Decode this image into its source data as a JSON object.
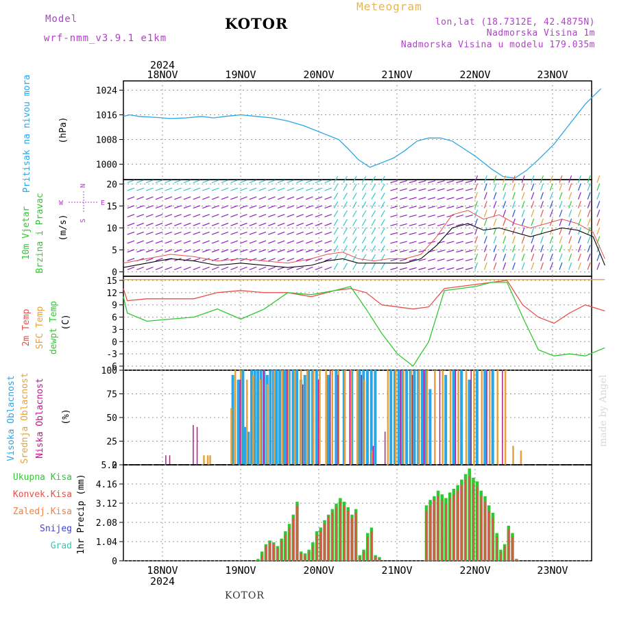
{
  "header": {
    "model_label": "Model",
    "model_name": "wrf-nmm_v3.9.1  e1km",
    "station": "KOTOR",
    "product": "Meteogram",
    "lonlat": "lon,lat (18.7312E, 42.4875N)",
    "elevation": "Nadmorska Visina 1m",
    "model_elevation": "Nadmorska Visina u modelu 179.035m"
  },
  "footer": {
    "station": "KOTOR",
    "credit": "made by Angel"
  },
  "time_axis": {
    "year_top": "2024",
    "year_bottom": "2024",
    "day_labels": [
      "18NOV",
      "19NOV",
      "20NOV",
      "21NOV",
      "22NOV",
      "23NOV"
    ]
  },
  "colors": {
    "pressure": "#2aa6e6",
    "temp": "#e8504a",
    "sfc": "#e6a13a",
    "dew": "#30c830",
    "high_cloud": "#2aa6e6",
    "mid_cloud": "#e6a13a",
    "low_cloud": "#c0148c",
    "precip_total": "#30c830",
    "precip_conv": "#e8504a",
    "precip_frozen": "#f08040",
    "snow": "#4040e0",
    "hail": "#30c8b0"
  },
  "chart_data": [
    {
      "type": "line",
      "name": "pressure",
      "ylabel_main": "Pritisak na nivou mora",
      "ylabel_unit": "(hPa)",
      "yticks": [
        "1000",
        "1008",
        "1016",
        "1024"
      ],
      "ylim": [
        995,
        1027
      ],
      "xlim_days": [
        0,
        6.15
      ],
      "x_days": [
        0,
        0.08,
        0.2,
        0.4,
        0.6,
        0.8,
        1.0,
        1.15,
        1.3,
        1.5,
        1.7,
        1.9,
        2.1,
        2.3,
        2.45,
        2.6,
        2.75,
        2.87,
        3.0,
        3.15,
        3.3,
        3.45,
        3.6,
        3.75,
        3.9,
        4.05,
        4.2,
        4.35,
        4.5,
        4.6,
        4.7,
        4.85,
        5.0,
        5.15,
        5.3,
        5.5,
        5.7,
        5.9,
        6.1
      ],
      "y": [
        1015.5,
        1016,
        1015.5,
        1015.2,
        1014.8,
        1015,
        1015.5,
        1015,
        1015.5,
        1016,
        1015.5,
        1015,
        1014,
        1012.5,
        1011,
        1009.5,
        1008,
        1005,
        1001.5,
        999,
        1000.5,
        1002,
        1004.5,
        1007.5,
        1008.5,
        1008.5,
        1007.5,
        1005,
        1002.5,
        1000.5,
        998.5,
        996,
        995.5,
        998,
        1001.5,
        1006.5,
        1013,
        1019.5,
        1024.5
      ],
      "grid": true
    },
    {
      "type": "barb",
      "name": "wind",
      "ylabel_main": "10m Vjetar",
      "ylabel_sub": "Brzina i Pravac",
      "ylabel_unit": "(m/s)",
      "compass": [
        "W",
        "S",
        "E",
        "N"
      ],
      "yticks": [
        "0",
        "5",
        "10",
        "15",
        "20"
      ],
      "ylim": [
        -1,
        21
      ],
      "speed_series_x_days": [
        0,
        0.3,
        0.6,
        0.9,
        1.2,
        1.5,
        1.8,
        2.1,
        2.4,
        2.6,
        2.8,
        3.0,
        3.2,
        3.4,
        3.6,
        3.8,
        4.0,
        4.2,
        4.4,
        4.6,
        4.8,
        5.0,
        5.2,
        5.4,
        5.6,
        5.8,
        6.0,
        6.15
      ],
      "speed_series_y": [
        1,
        2,
        3,
        2.5,
        1.5,
        2,
        1.5,
        1,
        1.5,
        2.5,
        3,
        2,
        2,
        2,
        2,
        3,
        6,
        10,
        11,
        9.5,
        10,
        9,
        8,
        9,
        10,
        9.5,
        8,
        1.5
      ],
      "gust_series_y": [
        2,
        3,
        4,
        3.5,
        2.5,
        3,
        2.5,
        2,
        3,
        4,
        4.5,
        3,
        2.5,
        3,
        3,
        4,
        8,
        13,
        14,
        12,
        13,
        11,
        10,
        11,
        12,
        11,
        9,
        3
      ],
      "grid": true
    },
    {
      "type": "line",
      "name": "temperature",
      "ylabel_lines": [
        "2m Temp",
        "SFC Temp",
        "dewpt Temp"
      ],
      "ylabel_unit": "(C)",
      "yticks": [
        "-6",
        "-3",
        "0",
        "3",
        "6",
        "9",
        "12",
        "15"
      ],
      "ylim": [
        -7,
        16
      ],
      "series": [
        {
          "name": "2m Temp",
          "x_days": [
            0,
            0.05,
            0.3,
            0.6,
            0.9,
            1.2,
            1.5,
            1.8,
            2.1,
            2.4,
            2.7,
            2.9,
            3.1,
            3.3,
            3.5,
            3.7,
            3.9,
            4.1,
            4.3,
            4.5,
            4.7,
            4.9,
            5.1,
            5.3,
            5.5,
            5.7,
            5.9,
            6.15
          ],
          "y": [
            13,
            10,
            10.5,
            10.5,
            10.5,
            12,
            12.5,
            12,
            12,
            11,
            12.5,
            13,
            12,
            9,
            8.5,
            8,
            8.5,
            13,
            13.5,
            14,
            14.5,
            15,
            9,
            6,
            4.5,
            7,
            9,
            7.5
          ]
        },
        {
          "name": "SFC Temp",
          "x_days": [
            0,
            6.15
          ],
          "y": [
            15.2,
            15.2
          ]
        },
        {
          "name": "dewpt Temp",
          "x_days": [
            0,
            0.05,
            0.3,
            0.6,
            0.9,
            1.2,
            1.5,
            1.8,
            2.1,
            2.4,
            2.7,
            2.9,
            3.1,
            3.3,
            3.5,
            3.7,
            3.9,
            4.1,
            4.3,
            4.5,
            4.7,
            4.9,
            5.1,
            5.3,
            5.5,
            5.7,
            5.9,
            6.15
          ],
          "y": [
            11,
            7,
            5,
            5.5,
            6,
            8,
            5.5,
            8,
            12,
            11.5,
            12.5,
            13.5,
            8,
            2,
            -3,
            -6,
            0,
            12.5,
            13,
            13.5,
            14.5,
            14.5,
            6,
            -2,
            -3.5,
            -3,
            -3.5,
            -1.5
          ]
        }
      ],
      "grid": true
    },
    {
      "type": "bar",
      "name": "cloud",
      "ylabel_lines": [
        "Visoka Oblacnost",
        "Srednja Oblacnost",
        "Niska Oblacnost"
      ],
      "ylabel_unit": "(%)",
      "yticks": [
        "0",
        "25",
        "50",
        "75",
        "100"
      ],
      "ylim": [
        0,
        100
      ],
      "series": [
        {
          "name": "Visoka Oblacnost",
          "x_days": [
            0.98,
            1.02,
            1.06,
            1.35,
            1.38,
            1.42,
            1.45,
            1.48,
            1.51,
            1.54,
            1.58,
            1.62,
            1.66,
            1.7,
            1.74,
            1.78,
            1.82,
            1.86,
            1.9,
            1.94,
            1.98,
            2.02,
            2.05,
            2.1,
            2.15,
            2.2,
            2.25,
            2.3,
            2.35,
            2.4,
            2.45,
            2.6,
            2.7,
            2.8,
            2.9,
            3.0,
            3.05,
            3.1,
            3.15,
            3.2,
            3.3,
            3.35,
            3.4,
            3.45,
            3.5,
            3.55,
            3.6,
            3.65,
            3.7,
            3.75,
            3.8,
            3.85,
            3.9,
            4.1,
            4.2,
            4.3,
            4.4,
            4.5,
            4.6,
            4.7
          ],
          "values": [
            0,
            0,
            0,
            0,
            95,
            0,
            90,
            0,
            100,
            40,
            35,
            100,
            100,
            100,
            100,
            100,
            95,
            100,
            100,
            100,
            100,
            100,
            100,
            100,
            100,
            100,
            90,
            95,
            100,
            100,
            100,
            95,
            100,
            100,
            100,
            100,
            100,
            100,
            100,
            100,
            0,
            0,
            100,
            100,
            100,
            100,
            100,
            100,
            100,
            100,
            100,
            100,
            80,
            95,
            100,
            100,
            90,
            100,
            100,
            100
          ]
        },
        {
          "name": "Srednja Oblacnost",
          "x_days": [
            1.0,
            1.05,
            1.08,
            1.35,
            1.4,
            1.47,
            1.55,
            1.63,
            1.72,
            1.81,
            1.9,
            2.0,
            2.08,
            2.16,
            2.24,
            2.32,
            2.4,
            2.48,
            2.56,
            2.64,
            2.72,
            2.8,
            2.88,
            2.96,
            3.05,
            3.15,
            3.25,
            3.35,
            3.45,
            3.55,
            3.65,
            3.75,
            3.85,
            3.95,
            4.05,
            4.15,
            4.25,
            4.35,
            4.45,
            4.55,
            4.65,
            4.75,
            4.85,
            4.95,
            5.05
          ],
          "values": [
            10,
            10,
            10,
            60,
            100,
            100,
            90,
            95,
            90,
            85,
            100,
            100,
            100,
            100,
            100,
            100,
            100,
            100,
            100,
            100,
            100,
            100,
            100,
            100,
            90,
            15,
            0,
            100,
            100,
            100,
            100,
            100,
            100,
            100,
            100,
            100,
            100,
            100,
            100,
            100,
            100,
            100,
            100,
            20,
            15
          ]
        },
        {
          "name": "Niska Oblacnost",
          "x_days": [
            0.5,
            0.55,
            0.85,
            0.9,
            1.45,
            1.75,
            2.05,
            2.25,
            2.45,
            2.6,
            2.7,
            2.85,
            3.0,
            3.15,
            3.3,
            3.5,
            3.65,
            3.8,
            4.0,
            4.2,
            4.4,
            4.6,
            4.8,
            5.0,
            5.2,
            5.4,
            5.6,
            5.8,
            6.0
          ],
          "values": [
            10,
            10,
            42,
            40,
            90,
            100,
            100,
            85,
            90,
            100,
            95,
            100,
            95,
            20,
            35,
            100,
            95,
            100,
            100,
            100,
            100,
            100,
            100,
            0,
            0,
            0,
            0,
            0,
            0
          ]
        }
      ],
      "grid": true
    },
    {
      "type": "bar",
      "name": "precip",
      "ylabel_lines": [
        "Ukupna Kisa",
        "Konvek.Kisa",
        "Zaledj.Kisa",
        "Snijeg",
        "Grad"
      ],
      "ylabel_unit": "1hr Precip (mm)",
      "yticks": [
        "0",
        "1.04",
        "2.08",
        "3.12",
        "4.16",
        "5.2"
      ],
      "ylim": [
        0,
        5.2
      ],
      "x_days": [
        1.7,
        1.75,
        1.8,
        1.85,
        1.9,
        1.95,
        2.0,
        2.05,
        2.1,
        2.15,
        2.2,
        2.25,
        2.3,
        2.35,
        2.4,
        2.45,
        2.5,
        2.55,
        2.6,
        2.65,
        2.7,
        2.75,
        2.8,
        2.85,
        2.9,
        2.95,
        3.0,
        3.05,
        3.1,
        3.15,
        3.2,
        3.25,
        3.3,
        3.35,
        3.4,
        3.45,
        3.5,
        3.55,
        3.6,
        3.65,
        3.7,
        3.75,
        3.8,
        3.85,
        3.9,
        3.95,
        4.0,
        4.05,
        4.1,
        4.15,
        4.2,
        4.25,
        4.3,
        4.35,
        4.4,
        4.45,
        4.5,
        4.55,
        4.6,
        4.65,
        4.7,
        4.75,
        4.8,
        4.85,
        4.9,
        4.95,
        5.0
      ],
      "total": [
        0.1,
        0.5,
        0.9,
        1.1,
        1.0,
        0.8,
        1.2,
        1.6,
        2.0,
        2.5,
        3.2,
        0.5,
        0.4,
        0.6,
        1.0,
        1.6,
        1.8,
        2.2,
        2.5,
        2.8,
        3.1,
        3.4,
        3.2,
        2.9,
        2.5,
        2.8,
        0.3,
        0.6,
        1.5,
        1.8,
        0.3,
        0.2,
        0,
        0,
        0,
        0,
        0,
        0,
        0,
        0,
        0,
        0,
        0,
        3.0,
        3.3,
        3.5,
        3.8,
        3.6,
        3.4,
        3.7,
        3.9,
        4.1,
        4.4,
        4.7,
        5.0,
        4.5,
        4.3,
        3.8,
        3.5,
        3.0,
        2.6,
        1.5,
        0.6,
        0.9,
        1.9,
        1.5,
        0.1
      ],
      "convective": [
        0,
        0.3,
        0.8,
        1.0,
        0.9,
        0.7,
        1.1,
        1.4,
        1.8,
        2.3,
        3.0,
        0.4,
        0.3,
        0.5,
        0.8,
        1.4,
        1.6,
        2.0,
        2.4,
        2.6,
        2.9,
        3.2,
        3.0,
        2.7,
        2.3,
        2.6,
        0.2,
        0.5,
        1.3,
        1.6,
        0.2,
        0.1,
        0,
        0,
        0,
        0,
        0,
        0,
        0,
        0,
        0,
        0,
        0,
        2.7,
        3.0,
        3.3,
        3.5,
        3.3,
        3.1,
        3.4,
        3.6,
        3.8,
        4.1,
        4.4,
        4.6,
        4.2,
        4.0,
        3.5,
        3.2,
        2.7,
        2.3,
        1.3,
        0.5,
        0.8,
        1.7,
        1.3,
        0.1
      ],
      "grid": true
    }
  ]
}
